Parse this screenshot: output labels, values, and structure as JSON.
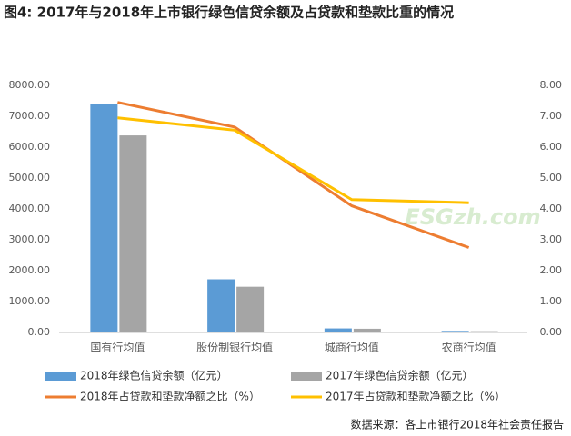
{
  "chart_data": {
    "type": "bar_line",
    "title": "图4: 2017年与2018年上市银行绿色信贷余额及占贷款和垫款比重的情况",
    "source": "数据来源：各上市银行2018年社会责任报告",
    "watermark": "ESGzh.com",
    "categories": [
      "国有行均值",
      "股份制银行均值",
      "城商行均值",
      "农商行均值"
    ],
    "series": [
      {
        "name": "2018年绿色信贷余额（亿元）",
        "type": "bar",
        "color": "#5b9bd5",
        "values": [
          7400,
          1720,
          130,
          50
        ]
      },
      {
        "name": "2017年绿色信贷余额（亿元）",
        "type": "bar",
        "color": "#a5a5a5",
        "values": [
          6380,
          1480,
          120,
          40
        ]
      },
      {
        "name": "2018年占贷款和垫款净额之比（%）",
        "type": "line",
        "axis": "y2",
        "color": "#ed7d31",
        "values": [
          7.45,
          6.65,
          4.1,
          2.75
        ]
      },
      {
        "name": "2017年占贷款和垫款净额之比（%）",
        "type": "line",
        "axis": "y2",
        "color": "#ffc000",
        "values": [
          6.95,
          6.55,
          4.3,
          4.2
        ]
      }
    ],
    "ylim": [
      0,
      8000
    ],
    "yticks": [
      {
        "value": 0,
        "label": "0.00"
      },
      {
        "value": 1000,
        "label": "1000.00"
      },
      {
        "value": 2000,
        "label": "2000.00"
      },
      {
        "value": 3000,
        "label": "3000.00"
      },
      {
        "value": 4000,
        "label": "4000.00"
      },
      {
        "value": 5000,
        "label": "5000.00"
      },
      {
        "value": 6000,
        "label": "6000.00"
      },
      {
        "value": 7000,
        "label": "7000.00"
      },
      {
        "value": 8000,
        "label": "8000.00"
      }
    ],
    "y2lim": [
      0,
      8
    ],
    "y2ticks": [
      {
        "value": 0,
        "label": "0.00"
      },
      {
        "value": 1,
        "label": "1.00"
      },
      {
        "value": 2,
        "label": "2.00"
      },
      {
        "value": 3,
        "label": "3.00"
      },
      {
        "value": 4,
        "label": "4.00"
      },
      {
        "value": 5,
        "label": "5.00"
      },
      {
        "value": 6,
        "label": "6.00"
      },
      {
        "value": 7,
        "label": "7.00"
      },
      {
        "value": 8,
        "label": "8.00"
      }
    ],
    "grid": false
  }
}
